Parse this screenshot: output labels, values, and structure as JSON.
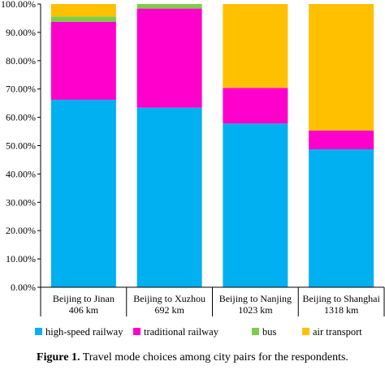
{
  "chart_data": {
    "type": "stacked-bar",
    "categories": [
      [
        "Beijing to Jinan",
        "406 km"
      ],
      [
        "Beijing to Xuzhou",
        "692 km"
      ],
      [
        "Beijing to Nanjing",
        "1023 km"
      ],
      [
        "Beijing to Shanghai",
        "1318 km"
      ]
    ],
    "yticks": [
      "0.00%",
      "10.00%",
      "20.00%",
      "30.00%",
      "40.00%",
      "50.00%",
      "60.00%",
      "70.00%",
      "80.00%",
      "90.00%",
      "100.00%"
    ],
    "ylim": [
      0,
      100
    ],
    "legend_position": "bottom",
    "series": [
      {
        "name": "high-speed railway",
        "color": "#00b0f0",
        "values": [
          66.2,
          63.4,
          57.8,
          48.7
        ]
      },
      {
        "name": "traditional railway",
        "color": "#ff00cc",
        "values": [
          27.5,
          35.0,
          12.6,
          6.6
        ]
      },
      {
        "name": "bus",
        "color": "#7dcd4b",
        "values": [
          1.9,
          1.6,
          0.0,
          0.0
        ]
      },
      {
        "name": "air transport",
        "color": "#ffc000",
        "values": [
          4.4,
          0.0,
          29.6,
          44.7
        ]
      }
    ]
  },
  "caption": {
    "label": "Figure 1.",
    "text": " Travel mode choices among city pairs for the respondents."
  }
}
